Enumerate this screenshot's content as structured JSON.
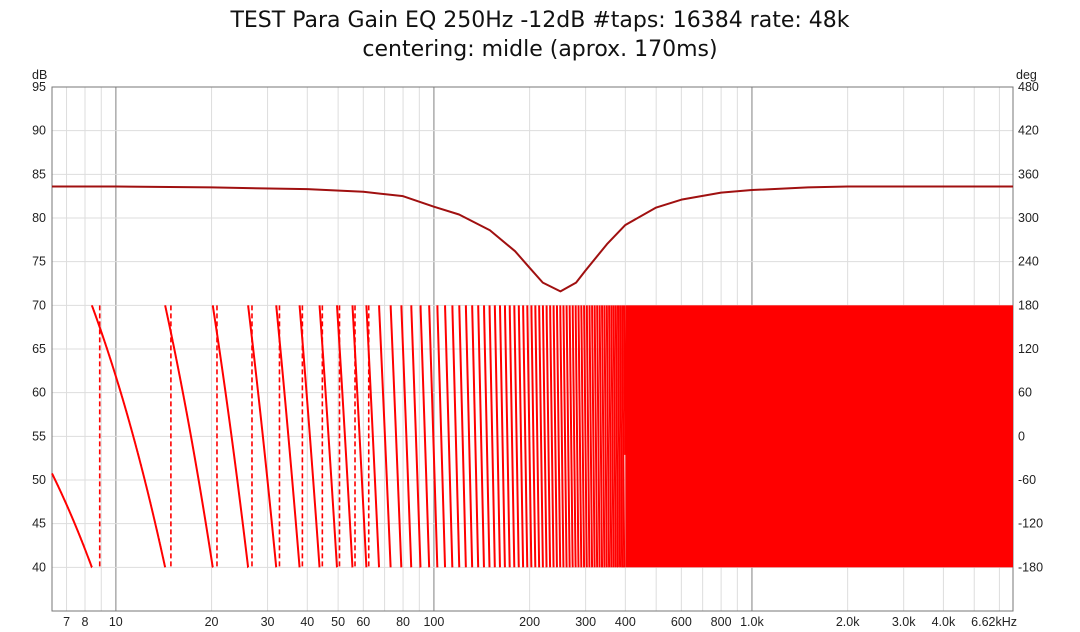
{
  "chart_data": {
    "type": "line",
    "title": "TEST Para Gain EQ 250Hz -12dB #taps: 16384 rate: 48k",
    "subtitle": "centering: midle (aprox. 170ms)",
    "x_scale": "log",
    "xlim": [
      6.3,
      6620
    ],
    "y_left_unit": "dB",
    "y_right_unit": "deg",
    "ylim_left": [
      35,
      95
    ],
    "ylim_right": [
      -240,
      480
    ],
    "grid": true,
    "x_ticks": [
      {
        "v": 7,
        "label": "7"
      },
      {
        "v": 8,
        "label": "8"
      },
      {
        "v": 10,
        "label": "10"
      },
      {
        "v": 20,
        "label": "20"
      },
      {
        "v": 30,
        "label": "30"
      },
      {
        "v": 40,
        "label": "40"
      },
      {
        "v": 50,
        "label": "50"
      },
      {
        "v": 60,
        "label": "60"
      },
      {
        "v": 80,
        "label": "80"
      },
      {
        "v": 100,
        "label": "100"
      },
      {
        "v": 200,
        "label": "200"
      },
      {
        "v": 300,
        "label": "300"
      },
      {
        "v": 400,
        "label": "400"
      },
      {
        "v": 600,
        "label": "600"
      },
      {
        "v": 800,
        "label": "800"
      },
      {
        "v": 1000,
        "label": "1.0k"
      },
      {
        "v": 2000,
        "label": "2.0k"
      },
      {
        "v": 3000,
        "label": "3.0k"
      },
      {
        "v": 4000,
        "label": "4.0k"
      },
      {
        "v": 6620,
        "label": "6.62kHz"
      }
    ],
    "y_left_ticks": [
      "95",
      "90",
      "85",
      "80",
      "75",
      "70",
      "65",
      "60",
      "55",
      "50",
      "45",
      "40"
    ],
    "y_right_ticks": [
      "480",
      "420",
      "360",
      "300",
      "240",
      "180",
      "120",
      "60",
      "0",
      "-60",
      "-120",
      "-180"
    ],
    "series": [
      {
        "color": "#a01010",
        "axis": "left",
        "x": [
          6.3,
          10,
          20,
          40,
          60,
          80,
          100,
          120,
          150,
          180,
          200,
          220,
          250,
          280,
          300,
          350,
          400,
          500,
          600,
          800,
          1000,
          1500,
          2000,
          3000,
          4000,
          6620
        ],
        "y": [
          83.6,
          83.6,
          83.5,
          83.3,
          83.0,
          82.5,
          81.3,
          80.4,
          78.6,
          76.2,
          74.3,
          72.6,
          71.6,
          72.6,
          74.0,
          77.0,
          79.2,
          81.2,
          82.1,
          82.9,
          83.2,
          83.5,
          83.6,
          83.6,
          83.6,
          83.6
        ]
      },
      {
        "color": "#ff0000",
        "axis": "right",
        "phase_wraps_at_hz": [
          8.9,
          14.9,
          20.8,
          26.8,
          32.7,
          38.6,
          44.6,
          50.5,
          56.5,
          62.4
        ],
        "phase_start_deg": -51,
        "phase_start_hz": 6.3,
        "group_delay_ms": 170,
        "range_deg": [
          -180,
          180
        ]
      }
    ]
  }
}
